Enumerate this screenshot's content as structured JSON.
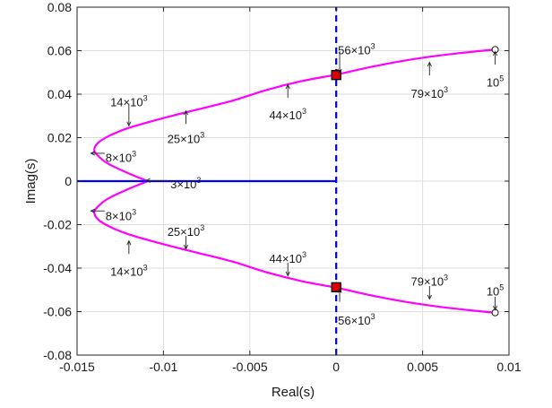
{
  "chart_data": {
    "type": "line",
    "title": "",
    "xlabel": "Real(s)",
    "ylabel": "Imag(s)",
    "xlim": [
      -0.015,
      0.01
    ],
    "ylim": [
      -0.08,
      0.08
    ],
    "xticks": [
      -0.015,
      -0.01,
      -0.005,
      0,
      0.005,
      0.01
    ],
    "yticks": [
      -0.08,
      -0.06,
      -0.04,
      -0.02,
      0,
      0.02,
      0.04,
      0.06,
      0.08
    ],
    "xtick_labels": [
      "-0.015",
      "-0.01",
      "-0.005",
      "0",
      "0.005",
      "0.01"
    ],
    "ytick_labels": [
      "-0.08",
      "-0.06",
      "-0.04",
      "-0.02",
      "0",
      "0.02",
      "0.04",
      "0.06",
      "0.08"
    ],
    "grid": true,
    "colors": {
      "locus": "#ff00ff",
      "real_axis_branch": "#0000ff",
      "stability_boundary": "#0000cc",
      "crossing_marker": "#dd0000"
    },
    "series": [
      {
        "role": "upper-locus",
        "style": "solid",
        "x": [
          -0.0109,
          -0.012,
          -0.0132,
          -0.0137,
          -0.014,
          -0.0138,
          -0.0131,
          -0.012,
          -0.01,
          -0.008,
          -0.006,
          -0.004,
          -0.002,
          0.0,
          0.002,
          0.004,
          0.006,
          0.008,
          0.0092
        ],
        "y": [
          0.0,
          0.0035,
          0.008,
          0.011,
          0.014,
          0.0175,
          0.021,
          0.0245,
          0.029,
          0.033,
          0.037,
          0.042,
          0.046,
          0.049,
          0.0525,
          0.0555,
          0.0578,
          0.0596,
          0.0605
        ]
      },
      {
        "role": "lower-locus",
        "style": "solid",
        "x": [
          -0.0109,
          -0.012,
          -0.0132,
          -0.0137,
          -0.014,
          -0.0138,
          -0.0131,
          -0.012,
          -0.01,
          -0.008,
          -0.006,
          -0.004,
          -0.002,
          0.0,
          0.002,
          0.004,
          0.006,
          0.008,
          0.0092
        ],
        "y": [
          0.0,
          -0.0035,
          -0.008,
          -0.011,
          -0.014,
          -0.0175,
          -0.021,
          -0.0245,
          -0.029,
          -0.033,
          -0.037,
          -0.042,
          -0.046,
          -0.049,
          -0.0525,
          -0.0555,
          -0.0578,
          -0.0596,
          -0.0605
        ]
      },
      {
        "role": "real-axis-branch",
        "style": "solid",
        "x": [
          -0.015,
          0.0
        ],
        "y": [
          0.0,
          0.0
        ]
      },
      {
        "role": "imaginary-axis",
        "style": "dashed",
        "x": [
          0.0,
          0.0
        ],
        "y": [
          -0.08,
          0.08
        ]
      }
    ],
    "crossing_points": [
      {
        "x": 0.0,
        "y": 0.0488
      },
      {
        "x": 0.0,
        "y": -0.0488
      }
    ],
    "endpoints": [
      {
        "x": 0.0092,
        "y": 0.0605
      },
      {
        "x": 0.0092,
        "y": -0.0605
      }
    ],
    "annotations": [
      {
        "base": "56×10",
        "exp": "3",
        "pt": [
          0.0002,
          0.0497
        ],
        "dir": "down",
        "len": 0.01,
        "align": "start",
        "tx": 0.0001,
        "ty": 0.0605
      },
      {
        "base": "10",
        "exp": "5",
        "pt": [
          0.0092,
          0.0596
        ],
        "dir": "up",
        "len": 0.006,
        "align": "middle",
        "tx": 0.0092,
        "ty": 0.0455
      },
      {
        "base": "79×10",
        "exp": "3",
        "pt": [
          0.0054,
          0.0546
        ],
        "dir": "up",
        "len": 0.006,
        "align": "middle",
        "tx": 0.0054,
        "ty": 0.0405
      },
      {
        "base": "44×10",
        "exp": "3",
        "pt": [
          -0.0028,
          0.0443
        ],
        "dir": "up",
        "len": 0.006,
        "align": "middle",
        "tx": -0.0028,
        "ty": 0.0305
      },
      {
        "base": "25×10",
        "exp": "3",
        "pt": [
          -0.0087,
          0.0323
        ],
        "dir": "up",
        "len": 0.006,
        "align": "middle",
        "tx": -0.0087,
        "ty": 0.0195
      },
      {
        "base": "14×10",
        "exp": "3",
        "pt": [
          -0.012,
          0.0255
        ],
        "dir": "down",
        "len": 0.01,
        "align": "middle",
        "tx": -0.012,
        "ty": 0.0365
      },
      {
        "base": "8×10",
        "exp": "3",
        "pt": [
          -0.0142,
          0.0128
        ],
        "dir": "left",
        "len": 0.0008,
        "align": "start",
        "tx": -0.01335,
        "ty": 0.011
      },
      {
        "base": "3×10",
        "exp": "3",
        "pt": [
          -0.011,
          0.0003
        ],
        "dir": "left",
        "len": 0.0012,
        "align": "start",
        "tx": -0.0096,
        "ty": -0.0012
      },
      {
        "base": "8×10",
        "exp": "3",
        "pt": [
          -0.0142,
          -0.0137
        ],
        "dir": "left",
        "len": 0.0008,
        "align": "start",
        "tx": -0.01335,
        "ty": -0.0158
      },
      {
        "base": "25×10",
        "exp": "3",
        "pt": [
          -0.0087,
          -0.0312
        ],
        "dir": "down",
        "len": 0.006,
        "align": "middle",
        "tx": -0.0087,
        "ty": -0.023
      },
      {
        "base": "14×10",
        "exp": "3",
        "pt": [
          -0.012,
          -0.0275
        ],
        "dir": "up",
        "len": 0.006,
        "align": "middle",
        "tx": -0.012,
        "ty": -0.0415
      },
      {
        "base": "44×10",
        "exp": "3",
        "pt": [
          -0.0028,
          -0.0435
        ],
        "dir": "down",
        "len": 0.006,
        "align": "middle",
        "tx": -0.0028,
        "ty": -0.0355
      },
      {
        "base": "79×10",
        "exp": "3",
        "pt": [
          0.0054,
          -0.0542
        ],
        "dir": "down",
        "len": 0.006,
        "align": "middle",
        "tx": 0.0054,
        "ty": -0.046
      },
      {
        "base": "56×10",
        "exp": "3",
        "pt": [
          0.0002,
          -0.0495
        ],
        "dir": "up",
        "len": 0.006,
        "align": "start",
        "tx": 0.0001,
        "ty": -0.064
      },
      {
        "base": "10",
        "exp": "5",
        "pt": [
          0.0092,
          -0.0592
        ],
        "dir": "down",
        "len": 0.006,
        "align": "middle",
        "tx": 0.0092,
        "ty": -0.0505
      }
    ]
  }
}
